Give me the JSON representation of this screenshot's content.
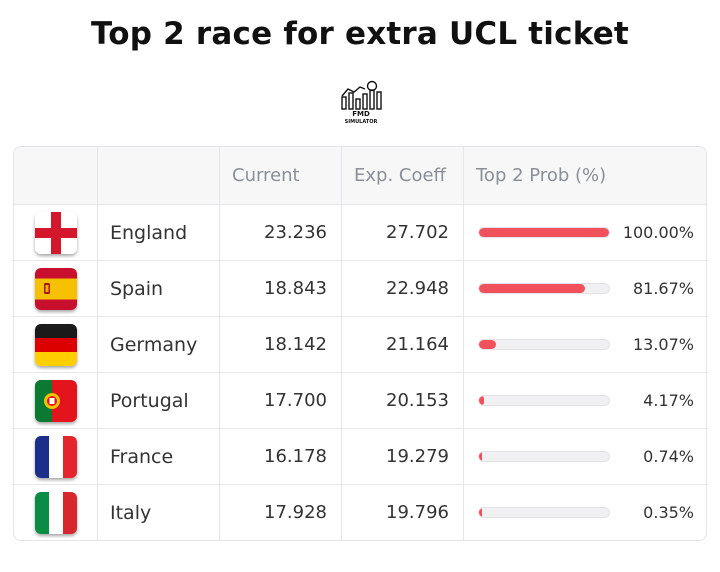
{
  "title": "Top 2 race for extra UCL ticket",
  "logo": {
    "line1": "FMD",
    "line2": "SIMULATOR",
    "icon": "chart-football-logo-icon"
  },
  "table": {
    "headers": [
      "",
      "",
      "Current",
      "Exp. Coeff",
      "Top 2 Prob (%)"
    ],
    "bar_color": "#f0515b",
    "rows": [
      {
        "flag": "england-flag-icon",
        "country": "England",
        "current": "23.236",
        "exp_coeff": "27.702",
        "prob_label": "100.00%",
        "prob": 100.0
      },
      {
        "flag": "spain-flag-icon",
        "country": "Spain",
        "current": "18.843",
        "exp_coeff": "22.948",
        "prob_label": "81.67%",
        "prob": 81.67
      },
      {
        "flag": "germany-flag-icon",
        "country": "Germany",
        "current": "18.142",
        "exp_coeff": "21.164",
        "prob_label": "13.07%",
        "prob": 13.07
      },
      {
        "flag": "portugal-flag-icon",
        "country": "Portugal",
        "current": "17.700",
        "exp_coeff": "20.153",
        "prob_label": "4.17%",
        "prob": 4.17
      },
      {
        "flag": "france-flag-icon",
        "country": "France",
        "current": "16.178",
        "exp_coeff": "19.279",
        "prob_label": "0.74%",
        "prob": 0.74
      },
      {
        "flag": "italy-flag-icon",
        "country": "Italy",
        "current": "17.928",
        "exp_coeff": "19.796",
        "prob_label": "0.35%",
        "prob": 0.35
      }
    ]
  }
}
